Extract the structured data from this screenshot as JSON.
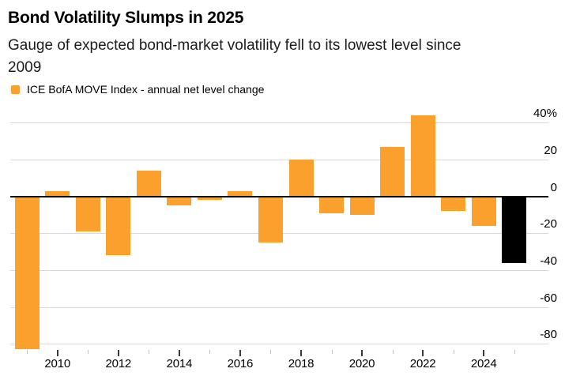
{
  "header": {
    "title": "Bond Volatility Slumps in 2025",
    "subtitle_line1": "Gauge of expected bond-market volatility fell to its lowest level since",
    "subtitle_line2": "2009"
  },
  "legend": {
    "label": "ICE BofA MOVE Index - annual net level change",
    "swatch_color": "#FCA02D"
  },
  "chart_data": {
    "type": "bar",
    "title": "Bond Volatility Slumps in 2025",
    "subtitle": "Gauge of expected bond-market volatility fell to its lowest level since 2009",
    "legend_entries": [
      "ICE BofA MOVE Index - annual net level change"
    ],
    "categories": [
      "2009",
      "2010",
      "2011",
      "2012",
      "2013",
      "2014",
      "2015",
      "2016",
      "2017",
      "2018",
      "2019",
      "2020",
      "2021",
      "2022",
      "2023",
      "2024",
      "2025"
    ],
    "values": [
      -83,
      3,
      -19,
      -32,
      14,
      -5,
      -2,
      3,
      -25,
      20,
      -9,
      -10,
      27,
      44,
      -8,
      -16,
      -36
    ],
    "unit": "%",
    "bar_color_default": "#FCA02D",
    "highlight_category": "2025",
    "highlight_color": "#000000",
    "yticks": [
      40,
      20,
      0,
      -20,
      -40,
      -60,
      -80
    ],
    "ytick_labels": [
      "40%",
      "20",
      "0",
      "-20",
      "-40",
      "-60",
      "-80"
    ],
    "xtick_labels": [
      "2010",
      "2012",
      "2014",
      "2016",
      "2018",
      "2020",
      "2022",
      "2024"
    ],
    "ylim": [
      -87,
      46
    ],
    "grid": "horizontal-only",
    "legend_position": "top-left",
    "xlabel": "",
    "ylabel": ""
  },
  "colors": {
    "background": "#ffffff",
    "grid_line": "#d9d9d9",
    "zero_line": "#000000",
    "text": "#000000",
    "tick_major": "#3a3a3a",
    "tick_minor": "#c2c2c2"
  }
}
